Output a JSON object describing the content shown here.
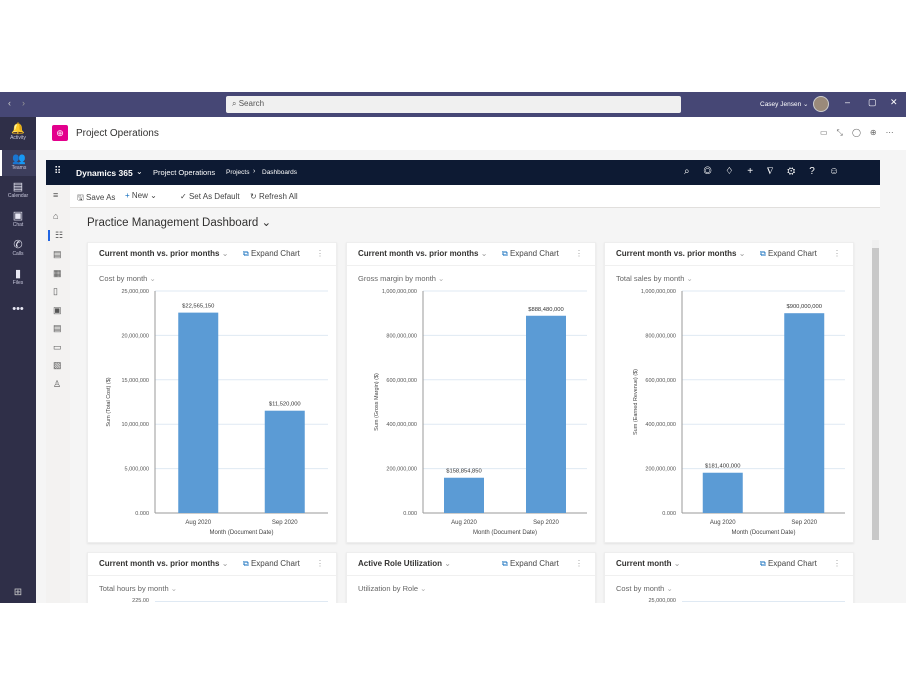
{
  "teams": {
    "search_placeholder": "Search",
    "user": "Casey Jensen ⌄",
    "rail": [
      {
        "label": "Activity",
        "icon": "🔔"
      },
      {
        "label": "Teams",
        "icon": "👥"
      },
      {
        "label": "Calendar",
        "icon": "▤"
      },
      {
        "label": "Chat",
        "icon": "▣"
      },
      {
        "label": "Calls",
        "icon": "✆"
      },
      {
        "label": "Files",
        "icon": "▮"
      },
      {
        "label": "",
        "icon": "•••"
      }
    ]
  },
  "app": {
    "title": "Project Operations",
    "brand_color": "#e3008c"
  },
  "nav": {
    "product": "Dynamics 365",
    "app": "Project Operations",
    "breadcrumb": [
      "Projects",
      "Dashboards"
    ]
  },
  "commands": {
    "save_as": "Save As",
    "new": "New",
    "set_default": "Set As Default",
    "refresh": "Refresh All"
  },
  "dashboard": {
    "title": "Practice Management Dashboard"
  },
  "expand_label": "Expand Chart",
  "bar_color": "#5b9bd5",
  "chart_data": [
    {
      "type": "bar",
      "header": "Current month vs. prior months",
      "title": "Cost by month",
      "xlabel": "Month (Document Date)",
      "ylabel": "Sum (Total Cost) ($)",
      "categories": [
        "Aug 2020",
        "Sep 2020"
      ],
      "values": [
        22565150,
        11520000
      ],
      "data_labels": [
        "$22,565,150",
        "$11,520,000"
      ],
      "ylim": [
        0,
        25000000
      ],
      "ticks": [
        "0.000",
        "5,000,000",
        "10,000,000",
        "15,000,000",
        "20,000,000",
        "25,000,000"
      ]
    },
    {
      "type": "bar",
      "header": "Current month vs. prior months",
      "title": "Gross margin by month",
      "xlabel": "Month (Document Date)",
      "ylabel": "Sum (Gross Margin) ($)",
      "categories": [
        "Aug 2020",
        "Sep 2020"
      ],
      "values": [
        158854850,
        888480000
      ],
      "data_labels": [
        "$158,854,850",
        "$888,480,000"
      ],
      "ylim": [
        0,
        1000000000
      ],
      "ticks": [
        "0.000",
        "200,000,000",
        "400,000,000",
        "600,000,000",
        "800,000,000",
        "1,000,000,000"
      ]
    },
    {
      "type": "bar",
      "header": "Current month vs. prior months",
      "title": "Total sales by month",
      "xlabel": "Month (Document Date)",
      "ylabel": "Sum (Earned Revenue) ($)",
      "categories": [
        "Aug 2020",
        "Sep 2020"
      ],
      "values": [
        181400000,
        900000000
      ],
      "data_labels": [
        "$181,400,000",
        "$900,000,000"
      ],
      "ylim": [
        0,
        1000000000
      ],
      "ticks": [
        "0.000",
        "200,000,000",
        "400,000,000",
        "600,000,000",
        "800,000,000",
        "1,000,000,000"
      ]
    }
  ],
  "lower_cards": [
    {
      "header": "Current month vs. prior months",
      "title": "Total hours by month",
      "first_tick": "225.00"
    },
    {
      "header": "Active Role Utilization",
      "title": "Utilization by Role",
      "first_tick": ""
    },
    {
      "header": "Current month",
      "title": "Cost by month",
      "first_tick": "25,000,000"
    }
  ]
}
